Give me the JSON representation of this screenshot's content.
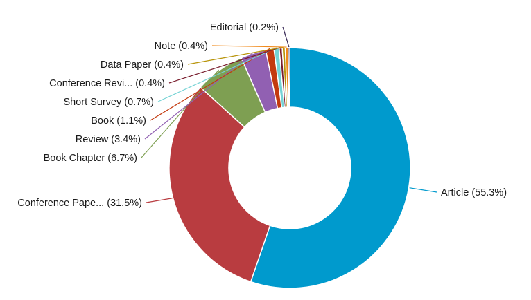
{
  "chart_data": {
    "type": "pie",
    "donut": true,
    "slices": [
      {
        "name": "Article",
        "value": 55.3,
        "label": "Article (55.3%)",
        "color": "#009ACD"
      },
      {
        "name": "Conference Pape...",
        "value": 31.5,
        "label": "Conference Pape... (31.5%)",
        "color": "#B93C40"
      },
      {
        "name": "Book Chapter",
        "value": 6.7,
        "label": "Book Chapter (6.7%)",
        "color": "#7E9F52"
      },
      {
        "name": "Review",
        "value": 3.4,
        "label": "Review (3.4%)",
        "color": "#9160B2"
      },
      {
        "name": "Book",
        "value": 1.1,
        "label": "Book (1.1%)",
        "color": "#C33A0F"
      },
      {
        "name": "Short Survey",
        "value": 0.7,
        "label": "Short Survey (0.7%)",
        "color": "#75D3D5"
      },
      {
        "name": "Conference Revi...",
        "value": 0.4,
        "label": "Conference Revi... (0.4%)",
        "color": "#7A1F2F"
      },
      {
        "name": "Data Paper",
        "value": 0.4,
        "label": "Data Paper (0.4%)",
        "color": "#B8940A"
      },
      {
        "name": "Note",
        "value": 0.4,
        "label": "Note (0.4%)",
        "color": "#F08A1C"
      },
      {
        "name": "Editorial",
        "value": 0.2,
        "label": "Editorial (0.2%)",
        "color": "#2A1A4A"
      }
    ]
  }
}
